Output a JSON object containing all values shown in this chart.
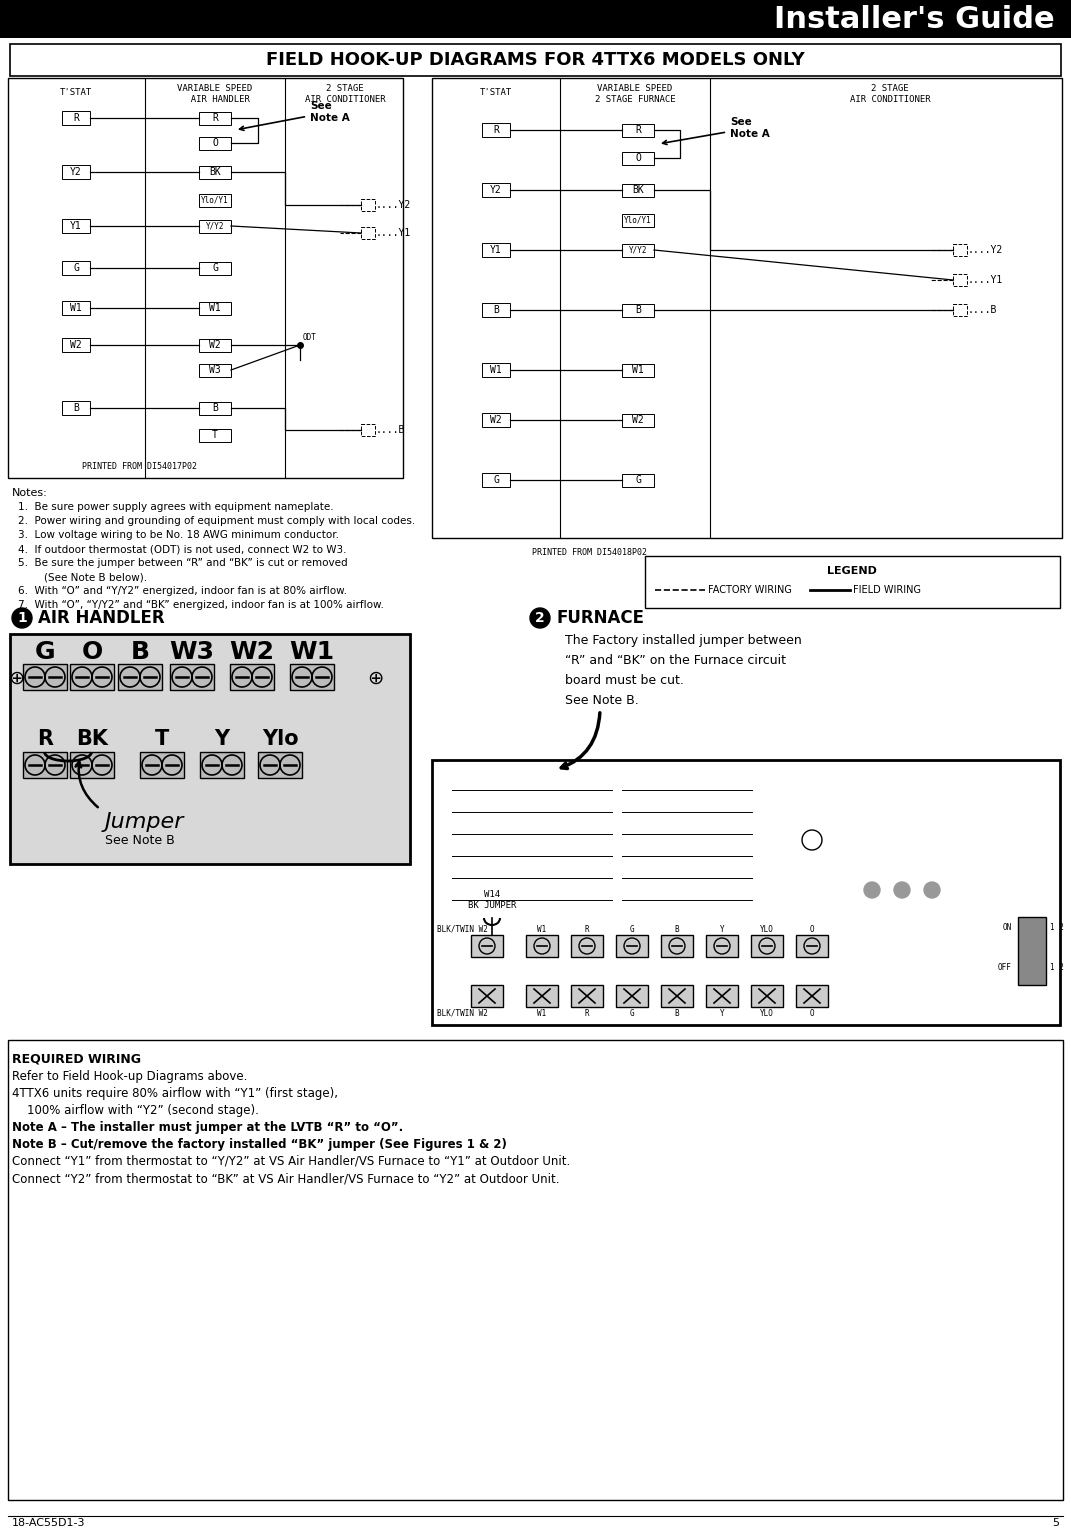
{
  "title_bar_text": "Installer's Guide",
  "main_title": "FIELD HOOK-UP DIAGRAMS FOR 4TTX6 MODELS ONLY",
  "page_number": "5",
  "doc_number": "18-AC55D1-3",
  "printed1": "PRINTED FROM DI54017P02",
  "printed2": "PRINTED FROM DI54018P02",
  "notes_title": "Notes:",
  "notes": [
    "Be sure power supply agrees with equipment nameplate.",
    "Power wiring and grounding of equipment must comply with local codes.",
    "Low voltage wiring to be No. 18 AWG minimum conductor.",
    "If outdoor thermostat (ODT) is not used, connect W2 to W3.",
    "Be sure the jumper between “R” and “BK” is cut or removed",
    "(See Note B below).",
    "With “O” and “Y/Y2” energized, indoor fan is at 80% airflow.",
    "With “O”, “Y/Y2” and “BK” energized, indoor fan is at 100% airflow."
  ],
  "furnace_note": "The Factory installed jumper between\n“R” and “BK” on the Furnace circuit\nboard must be cut.\nSee Note B.",
  "required_wiring_lines": [
    [
      "normal",
      "Refer to Field Hook-up Diagrams above."
    ],
    [
      "normal",
      "4TTX6 units require 80% airflow with “Y1” (first stage),"
    ],
    [
      "normal",
      "    100% airflow with “Y2” (second stage)."
    ],
    [
      "bold",
      "Note A – The installer must jumper at the LVTB “R” to “O”."
    ],
    [
      "bold",
      "Note B – Cut/remove the factory installed “BK” jumper (See Figures 1 & 2)"
    ],
    [
      "normal",
      "Connect “Y1” from thermostat to “Y/Y2” at VS Air Handler/VS Furnace to “Y1” at Outdoor Unit."
    ],
    [
      "normal",
      "Connect “Y2” from thermostat to “BK” at VS Air Handler/VS Furnace to “Y2” at Outdoor Unit."
    ]
  ],
  "bg_color": "#ffffff",
  "text_color": "#000000"
}
